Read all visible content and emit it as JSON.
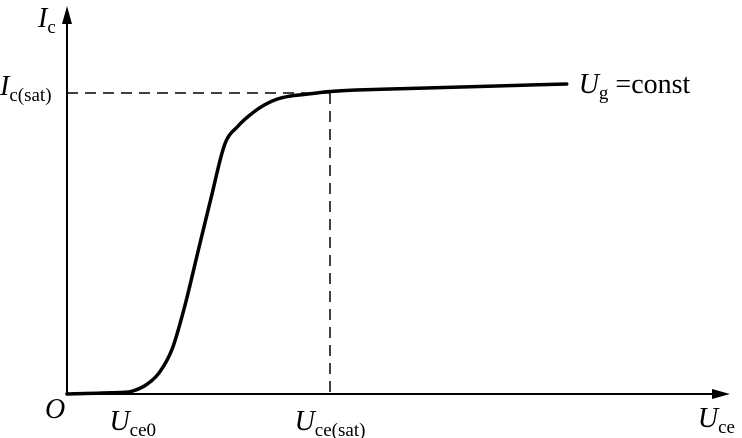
{
  "chart_data": {
    "type": "line",
    "title": "",
    "xlabel": {
      "main": "U",
      "sub": "ce"
    },
    "ylabel": {
      "main": "I",
      "sub": "c"
    },
    "origin_label": "O",
    "x_ticks": [
      {
        "main": "U",
        "sub": "ce0",
        "x": 0.25
      },
      {
        "main": "U",
        "sub": "ce(sat)",
        "x": 1.0
      }
    ],
    "y_ticks": [
      {
        "main": "I",
        "sub": "c(sat)",
        "y": 1.0
      }
    ],
    "xlim": [
      0,
      2.05
    ],
    "ylim": [
      0,
      1.22
    ],
    "series": [
      {
        "label": {
          "main": "U",
          "sub": "g",
          "tail": " =const"
        },
        "x": [
          0,
          0.2,
          0.25,
          0.3,
          0.35,
          0.4,
          0.45,
          0.5,
          0.55,
          0.6,
          0.65,
          0.7,
          0.75,
          0.8,
          0.85,
          0.9,
          0.95,
          1.0,
          1.1,
          1.3,
          1.5,
          1.7,
          1.9
        ],
        "y": [
          0.0,
          0.005,
          0.01,
          0.03,
          0.07,
          0.15,
          0.3,
          0.48,
          0.66,
          0.83,
          0.89,
          0.93,
          0.96,
          0.98,
          0.99,
          0.995,
          1.0,
          1.005,
          1.01,
          1.015,
          1.02,
          1.025,
          1.03
        ]
      }
    ],
    "guides": [
      {
        "type": "dashed",
        "x": 1.0,
        "y": 1.0
      }
    ],
    "grid": false,
    "legend": "none"
  }
}
